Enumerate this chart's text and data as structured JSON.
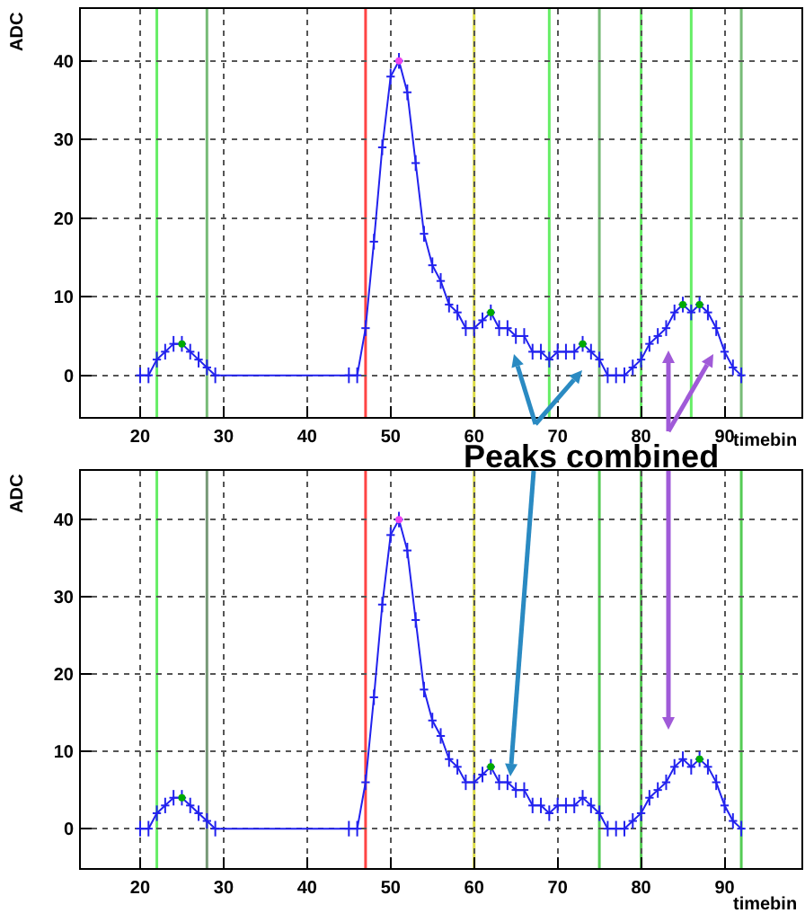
{
  "chart_data": [
    {
      "type": "line",
      "xlabel": "timebin",
      "ylabel": "ADC",
      "xlim": [
        12.9,
        99.2
      ],
      "ylim": [
        -5.3,
        46.6
      ],
      "xticks": [
        20,
        30,
        40,
        50,
        60,
        70,
        80,
        90
      ],
      "yticks": [
        0,
        10,
        20,
        30,
        40
      ],
      "grid": true,
      "annotations": [
        "Peaks combined"
      ],
      "series": [
        {
          "type": "line",
          "color": "#2222ee",
          "x": [
            20,
            21,
            22,
            23,
            24,
            25,
            26,
            27,
            28,
            29,
            45,
            46,
            47,
            48,
            49,
            50,
            51,
            52,
            53,
            54,
            55,
            56,
            57,
            58,
            59,
            60,
            61,
            62,
            63,
            64,
            65,
            66,
            67,
            68,
            69,
            70,
            71,
            72,
            73,
            74,
            75,
            76,
            77,
            78,
            79,
            80,
            81,
            82,
            83,
            84,
            85,
            86,
            87,
            88,
            89,
            90,
            91,
            92
          ],
          "values": [
            0,
            0,
            2,
            3,
            4,
            4,
            3,
            2,
            1,
            0,
            0,
            0,
            6,
            17,
            29,
            38,
            40,
            36,
            27,
            18,
            14,
            12,
            9,
            8,
            6,
            6,
            7,
            8,
            6,
            6,
            5,
            5,
            3,
            3,
            2,
            3,
            3,
            3,
            4,
            3,
            2,
            0,
            0,
            0,
            1,
            2,
            4,
            5,
            6,
            8,
            9,
            8,
            9,
            8,
            6,
            3,
            1,
            0
          ],
          "errors": [
            1,
            1,
            1,
            1,
            1,
            1,
            1,
            1,
            1,
            1,
            1,
            1,
            1,
            1,
            1,
            1,
            1,
            1,
            1,
            1,
            1,
            1,
            1,
            1,
            1,
            1,
            1,
            1,
            1,
            1,
            1,
            1,
            1,
            1,
            1,
            1,
            1,
            1,
            1,
            1,
            1,
            1,
            1,
            1,
            1,
            1,
            1,
            1,
            1,
            1,
            1,
            1,
            1,
            1,
            1,
            1,
            1,
            1
          ],
          "xerrors": [
            0.5,
            0.5,
            0.5,
            0.5,
            0.5,
            0.5,
            0.5,
            0.5,
            0.5,
            0.5,
            0.5,
            0.5,
            0.5,
            0.5,
            0.5,
            0.5,
            0.5,
            0.5,
            0.5,
            0.5,
            0.5,
            0.5,
            0.5,
            0.5,
            0.5,
            0.5,
            0.5,
            0.5,
            0.5,
            0.5,
            0.5,
            0.5,
            0.5,
            0.5,
            0.5,
            0.5,
            0.5,
            0.5,
            0.5,
            0.5,
            0.5,
            0.5,
            0.5,
            0.5,
            0.5,
            0.5,
            0.5,
            0.5,
            0.5,
            0.5,
            0.5,
            0.5,
            0.5,
            0.5,
            0.5,
            0.5,
            0.5,
            0.5
          ]
        },
        {
          "type": "scatter",
          "marker": "circle",
          "color": "#00aa00",
          "x": [
            25,
            62,
            73,
            85,
            87
          ],
          "values": [
            4,
            8,
            4,
            9,
            9
          ]
        },
        {
          "type": "scatter",
          "marker": "circle",
          "color": "#ee44ee",
          "x": [
            51
          ],
          "values": [
            40
          ]
        }
      ],
      "ref_lines": [
        {
          "axis": "x",
          "value": 22,
          "color": "#66ee66"
        },
        {
          "axis": "x",
          "value": 28,
          "color": "#77bb77"
        },
        {
          "axis": "x",
          "value": 47,
          "color": "#ff4444"
        },
        {
          "axis": "x",
          "value": 60,
          "color": "#dddd44"
        },
        {
          "axis": "x",
          "value": 69,
          "color": "#66ee66"
        },
        {
          "axis": "x",
          "value": 75,
          "color": "#77bb77"
        },
        {
          "axis": "x",
          "value": 80,
          "color": "#66ee66"
        },
        {
          "axis": "x",
          "value": 86,
          "color": "#66ee66"
        },
        {
          "axis": "x",
          "value": 92,
          "color": "#77bb77"
        }
      ]
    },
    {
      "type": "line",
      "xlabel": "timebin",
      "ylabel": "ADC",
      "xlim": [
        12.9,
        99.2
      ],
      "ylim": [
        -5.1,
        46.3
      ],
      "xticks": [
        20,
        30,
        40,
        50,
        60,
        70,
        80,
        90
      ],
      "yticks": [
        0,
        10,
        20,
        30,
        40
      ],
      "grid": true,
      "series": [
        {
          "type": "line",
          "color": "#2222ee",
          "x": [
            20,
            21,
            22,
            23,
            24,
            25,
            26,
            27,
            28,
            29,
            45,
            46,
            47,
            48,
            49,
            50,
            51,
            52,
            53,
            54,
            55,
            56,
            57,
            58,
            59,
            60,
            61,
            62,
            63,
            64,
            65,
            66,
            67,
            68,
            69,
            70,
            71,
            72,
            73,
            74,
            75,
            76,
            77,
            78,
            79,
            80,
            81,
            82,
            83,
            84,
            85,
            86,
            87,
            88,
            89,
            90,
            91,
            92
          ],
          "values": [
            0,
            0,
            2,
            3,
            4,
            4,
            3,
            2,
            1,
            0,
            0,
            0,
            6,
            17,
            29,
            38,
            40,
            36,
            27,
            18,
            14,
            12,
            9,
            8,
            6,
            6,
            7,
            8,
            6,
            6,
            5,
            5,
            3,
            3,
            2,
            3,
            3,
            3,
            4,
            3,
            2,
            0,
            0,
            0,
            1,
            2,
            4,
            5,
            6,
            8,
            9,
            8,
            9,
            8,
            6,
            3,
            1,
            0
          ],
          "errors": [
            1,
            1,
            1,
            1,
            1,
            1,
            1,
            1,
            1,
            1,
            1,
            1,
            1,
            1,
            1,
            1,
            1,
            1,
            1,
            1,
            1,
            1,
            1,
            1,
            1,
            1,
            1,
            1,
            1,
            1,
            1,
            1,
            1,
            1,
            1,
            1,
            1,
            1,
            1,
            1,
            1,
            1,
            1,
            1,
            1,
            1,
            1,
            1,
            1,
            1,
            1,
            1,
            1,
            1,
            1,
            1,
            1,
            1
          ],
          "xerrors": [
            0.5,
            0.5,
            0.5,
            0.5,
            0.5,
            0.5,
            0.5,
            0.5,
            0.5,
            0.5,
            0.5,
            0.5,
            0.5,
            0.5,
            0.5,
            0.5,
            0.5,
            0.5,
            0.5,
            0.5,
            0.5,
            0.5,
            0.5,
            0.5,
            0.5,
            0.5,
            0.5,
            0.5,
            0.5,
            0.5,
            0.5,
            0.5,
            0.5,
            0.5,
            0.5,
            0.5,
            0.5,
            0.5,
            0.5,
            0.5,
            0.5,
            0.5,
            0.5,
            0.5,
            0.5,
            0.5,
            0.5,
            0.5,
            0.5,
            0.5,
            0.5,
            0.5,
            0.5,
            0.5,
            0.5,
            0.5,
            0.5,
            0.5
          ]
        },
        {
          "type": "scatter",
          "marker": "circle",
          "color": "#00aa00",
          "x": [
            25,
            62,
            87
          ],
          "values": [
            4,
            8,
            9
          ]
        },
        {
          "type": "scatter",
          "marker": "circle",
          "color": "#ee44ee",
          "x": [
            51
          ],
          "values": [
            40
          ]
        }
      ],
      "ref_lines": [
        {
          "axis": "x",
          "value": 22,
          "color": "#66ee66"
        },
        {
          "axis": "x",
          "value": 28,
          "color": "#779977"
        },
        {
          "axis": "x",
          "value": 47,
          "color": "#ff4444"
        },
        {
          "axis": "x",
          "value": 60,
          "color": "#dddd44"
        },
        {
          "axis": "x",
          "value": 75,
          "color": "#55cc55"
        },
        {
          "axis": "x",
          "value": 80,
          "color": "#55cc55"
        },
        {
          "axis": "x",
          "value": 92,
          "color": "#55cc55"
        }
      ]
    }
  ]
}
